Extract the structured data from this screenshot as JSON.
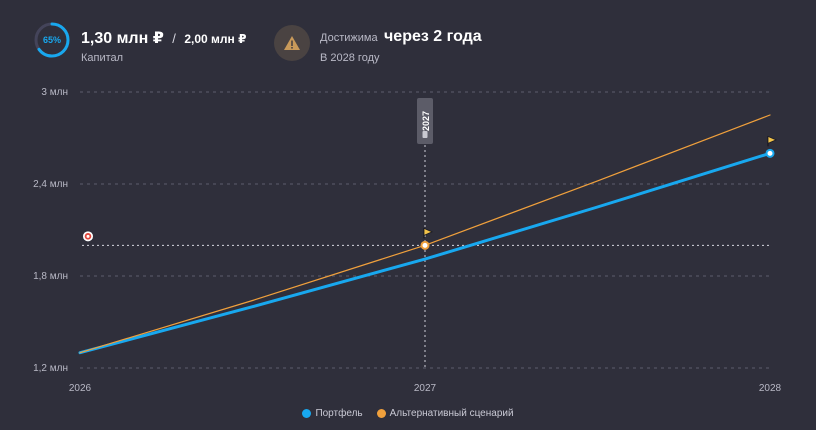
{
  "header": {
    "progress_percent": 65,
    "progress_label": "65%",
    "capital_value": "1,30 млн ₽",
    "separator": "/",
    "capital_target": "2,00 млн ₽",
    "capital_label": "Капитал",
    "reach_label": "Достижима",
    "reach_value": "через 2 года",
    "reach_sub": "В 2028 году",
    "warning_icon": "warning-triangle-icon"
  },
  "colors": {
    "background": "#2f2f3b",
    "portfolio": "#18a8ef",
    "alternative": "#f0a03c",
    "grid": "#6a6a78",
    "label": "#b9b9c6",
    "warning": "#c99a5a"
  },
  "chart_data": {
    "type": "line",
    "x_ticks": [
      "2026",
      "2027",
      "2028"
    ],
    "x_range": [
      2026,
      2028
    ],
    "y_ticks": [
      {
        "value": 1.2,
        "label": "1,2 млн"
      },
      {
        "value": 1.8,
        "label": "1,8 млн"
      },
      {
        "value": 2.4,
        "label": "2,4 млн"
      },
      {
        "value": 3.0,
        "label": "3 млн"
      }
    ],
    "y_range": [
      1.2,
      3.0
    ],
    "target": 2.0,
    "marker_x": 2027,
    "marker_label": "2027",
    "series": [
      {
        "name": "Портфель",
        "color": "#18a8ef",
        "x": [
          2026,
          2026.5,
          2027,
          2027.5,
          2028
        ],
        "y": [
          1.3,
          1.6,
          1.91,
          2.25,
          2.6
        ]
      },
      {
        "name": "Альтернативный сценарий",
        "color": "#f0a03c",
        "x": [
          2026,
          2026.5,
          2027,
          2027.5,
          2028
        ],
        "y": [
          1.3,
          1.64,
          2.0,
          2.42,
          2.85
        ]
      }
    ],
    "legend_position": "bottom-center"
  }
}
